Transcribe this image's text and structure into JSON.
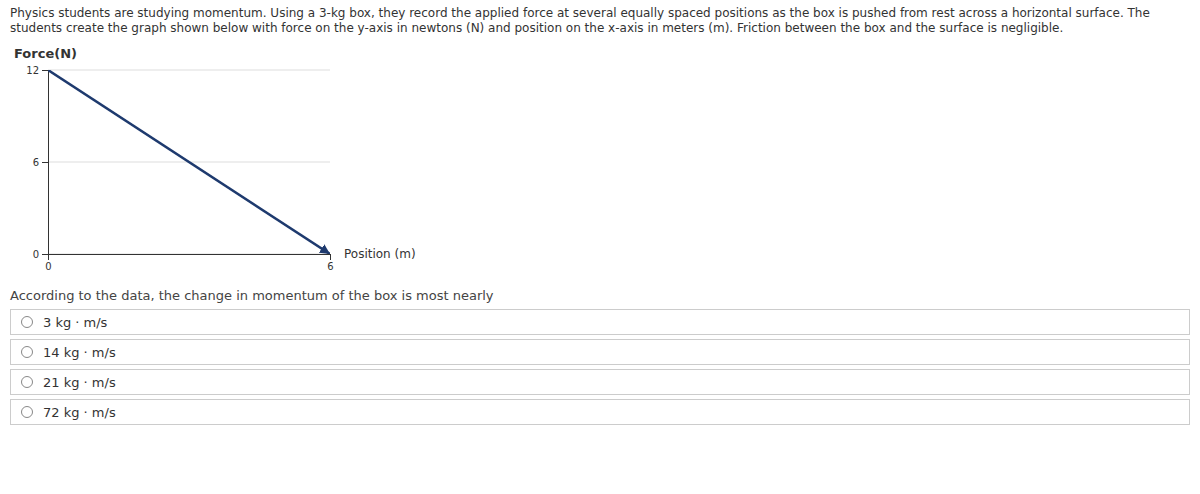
{
  "chart_data": {
    "type": "line",
    "x": [
      0,
      6
    ],
    "values": [
      12,
      0
    ],
    "color": "#1e3a6e",
    "x_label": "Position (m)",
    "y_label": "Force(N)",
    "xlim": [
      0,
      6
    ],
    "ylim": [
      0,
      12
    ],
    "xticks": [
      0,
      6
    ],
    "yticks": [
      0,
      6,
      12
    ],
    "grid": true,
    "annotations": [
      "Physics students are studying momentum. Using a 3-kg box, they record the applied force at several equally spaced positions as the box is pushed from rest across a horizontal surface. The students create the graph shown below with force on the y-axis in newtons (N) and position on the x-axis in meters (m). Friction between the box and the surface is negligible.",
      "According to the data, the change in momentum of the box is most nearly",
      "3 kg · m/s",
      "14 kg · m/s",
      "21 kg · m/s",
      "72 kg · m/s"
    ]
  }
}
